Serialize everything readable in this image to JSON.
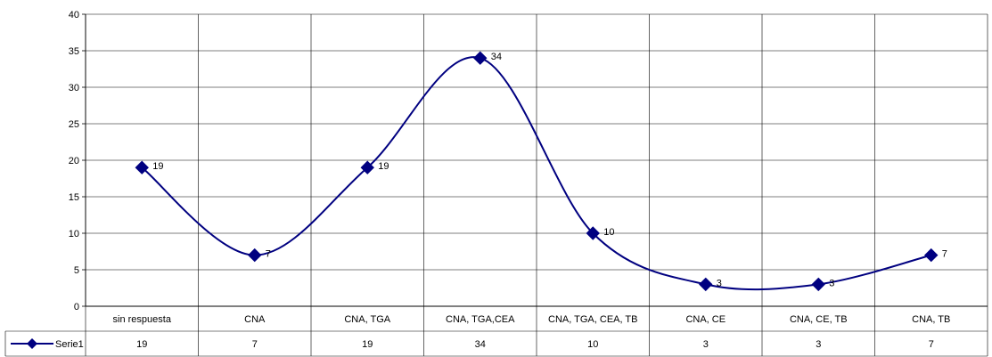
{
  "chart_data": {
    "type": "line",
    "categories": [
      "sin respuesta",
      "CNA",
      "CNA, TGA",
      "CNA, TGA,CEA",
      "CNA, TGA, CEA, TB",
      "CNA, CE",
      "CNA, CE, TB",
      "CNA, TB"
    ],
    "series": [
      {
        "name": "Serie1",
        "values": [
          19,
          7,
          19,
          34,
          10,
          3,
          3,
          7
        ],
        "color": "#000080"
      }
    ],
    "ylim": [
      0,
      40
    ],
    "yticks": [
      0,
      5,
      10,
      15,
      20,
      25,
      30,
      35,
      40
    ],
    "data_labels": true,
    "smoothed": true,
    "grid": true,
    "legend": "data-table-left",
    "data_table": true,
    "marker": "diamond"
  }
}
